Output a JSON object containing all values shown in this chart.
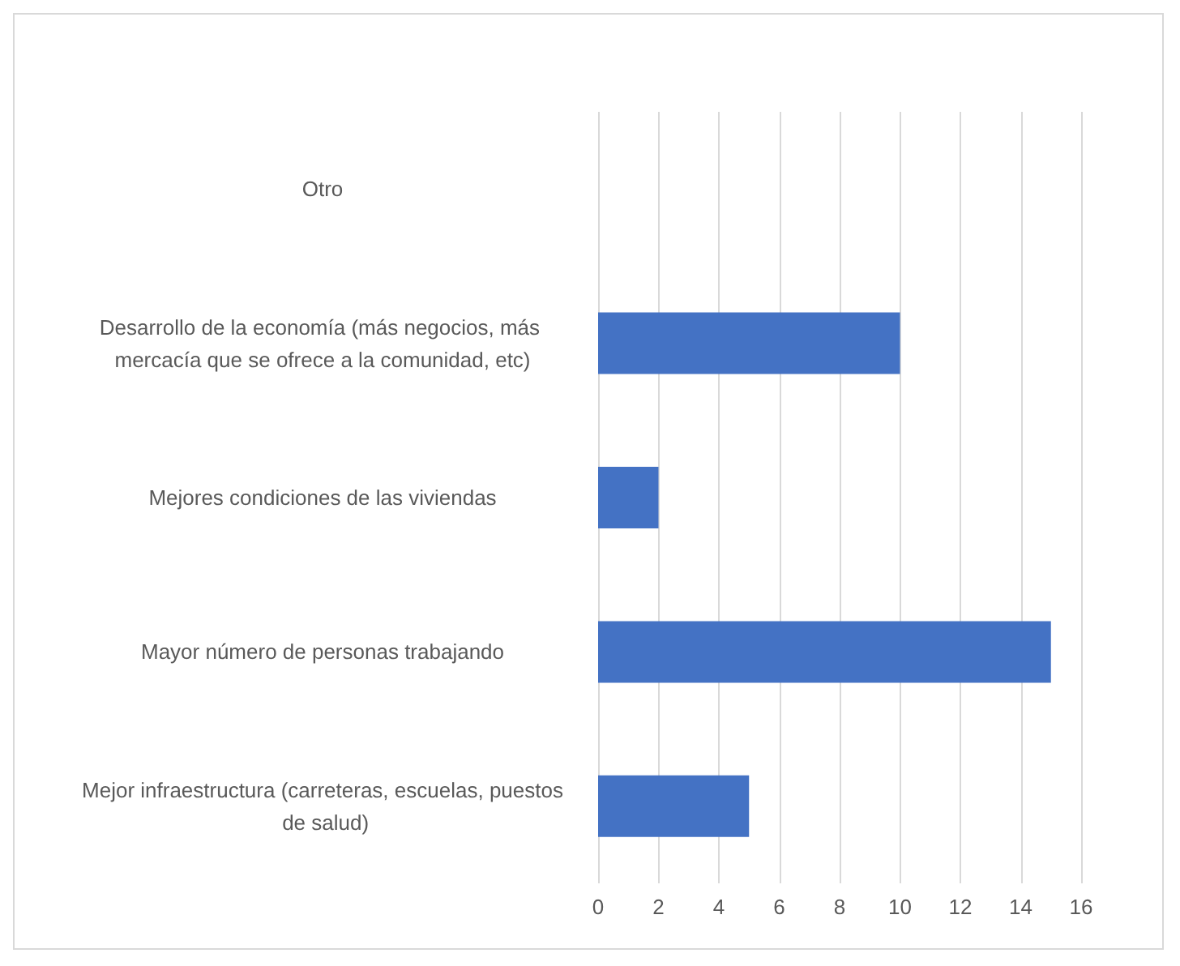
{
  "chart_data": {
    "type": "bar",
    "orientation": "horizontal",
    "categories": [
      "Otro",
      "Desarrollo de la economía (más negocios, más mercacía que se ofrece a la comunidad, etc)",
      "Mejores condiciones de las viviendas",
      "Mayor número de personas trabajando",
      "Mejor infraestructura (carreteras, escuelas, puestos de salud)"
    ],
    "values": [
      0,
      10,
      2,
      15,
      5
    ],
    "color": "#4472c4",
    "xlim": [
      0,
      16
    ],
    "xticks": [
      0,
      2,
      4,
      6,
      8,
      10,
      12,
      14,
      16
    ],
    "grid": "x"
  }
}
